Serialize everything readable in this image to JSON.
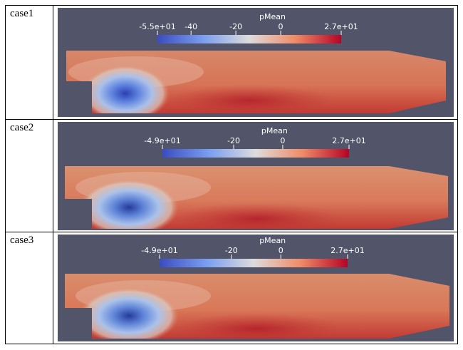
{
  "cases": [
    {
      "label": "case1",
      "colorbar": {
        "title": "pMean",
        "min_value": -55,
        "max_value": 27,
        "ticks": [
          {
            "label": "-5.5e+01",
            "value": -55
          },
          {
            "label": "-40",
            "value": -40
          },
          {
            "label": "-20",
            "value": -20
          },
          {
            "label": "0",
            "value": 0
          },
          {
            "label": "2.7e+01",
            "value": 27
          }
        ]
      }
    },
    {
      "label": "case2",
      "colorbar": {
        "title": "pMean",
        "min_value": -49,
        "max_value": 27,
        "ticks": [
          {
            "label": "-4.9e+01",
            "value": -49
          },
          {
            "label": "-20",
            "value": -20
          },
          {
            "label": "0",
            "value": 0
          },
          {
            "label": "2.7e+01",
            "value": 27
          }
        ]
      }
    },
    {
      "label": "case3",
      "colorbar": {
        "title": "pMean",
        "min_value": -49,
        "max_value": 27,
        "ticks": [
          {
            "label": "-4.9e+01",
            "value": -49
          },
          {
            "label": "-20",
            "value": -20
          },
          {
            "label": "0",
            "value": 0
          },
          {
            "label": "2.7e+01",
            "value": 27
          }
        ]
      }
    }
  ],
  "colors": {
    "background": "#525469",
    "colormap": [
      "#3b4cc0",
      "#7a9ef0",
      "#dddcdc",
      "#f08b67",
      "#b40426"
    ],
    "field_base": "#dc8464",
    "low_pressure": "#2f4fc2",
    "high_pressure": "#b91e27"
  }
}
